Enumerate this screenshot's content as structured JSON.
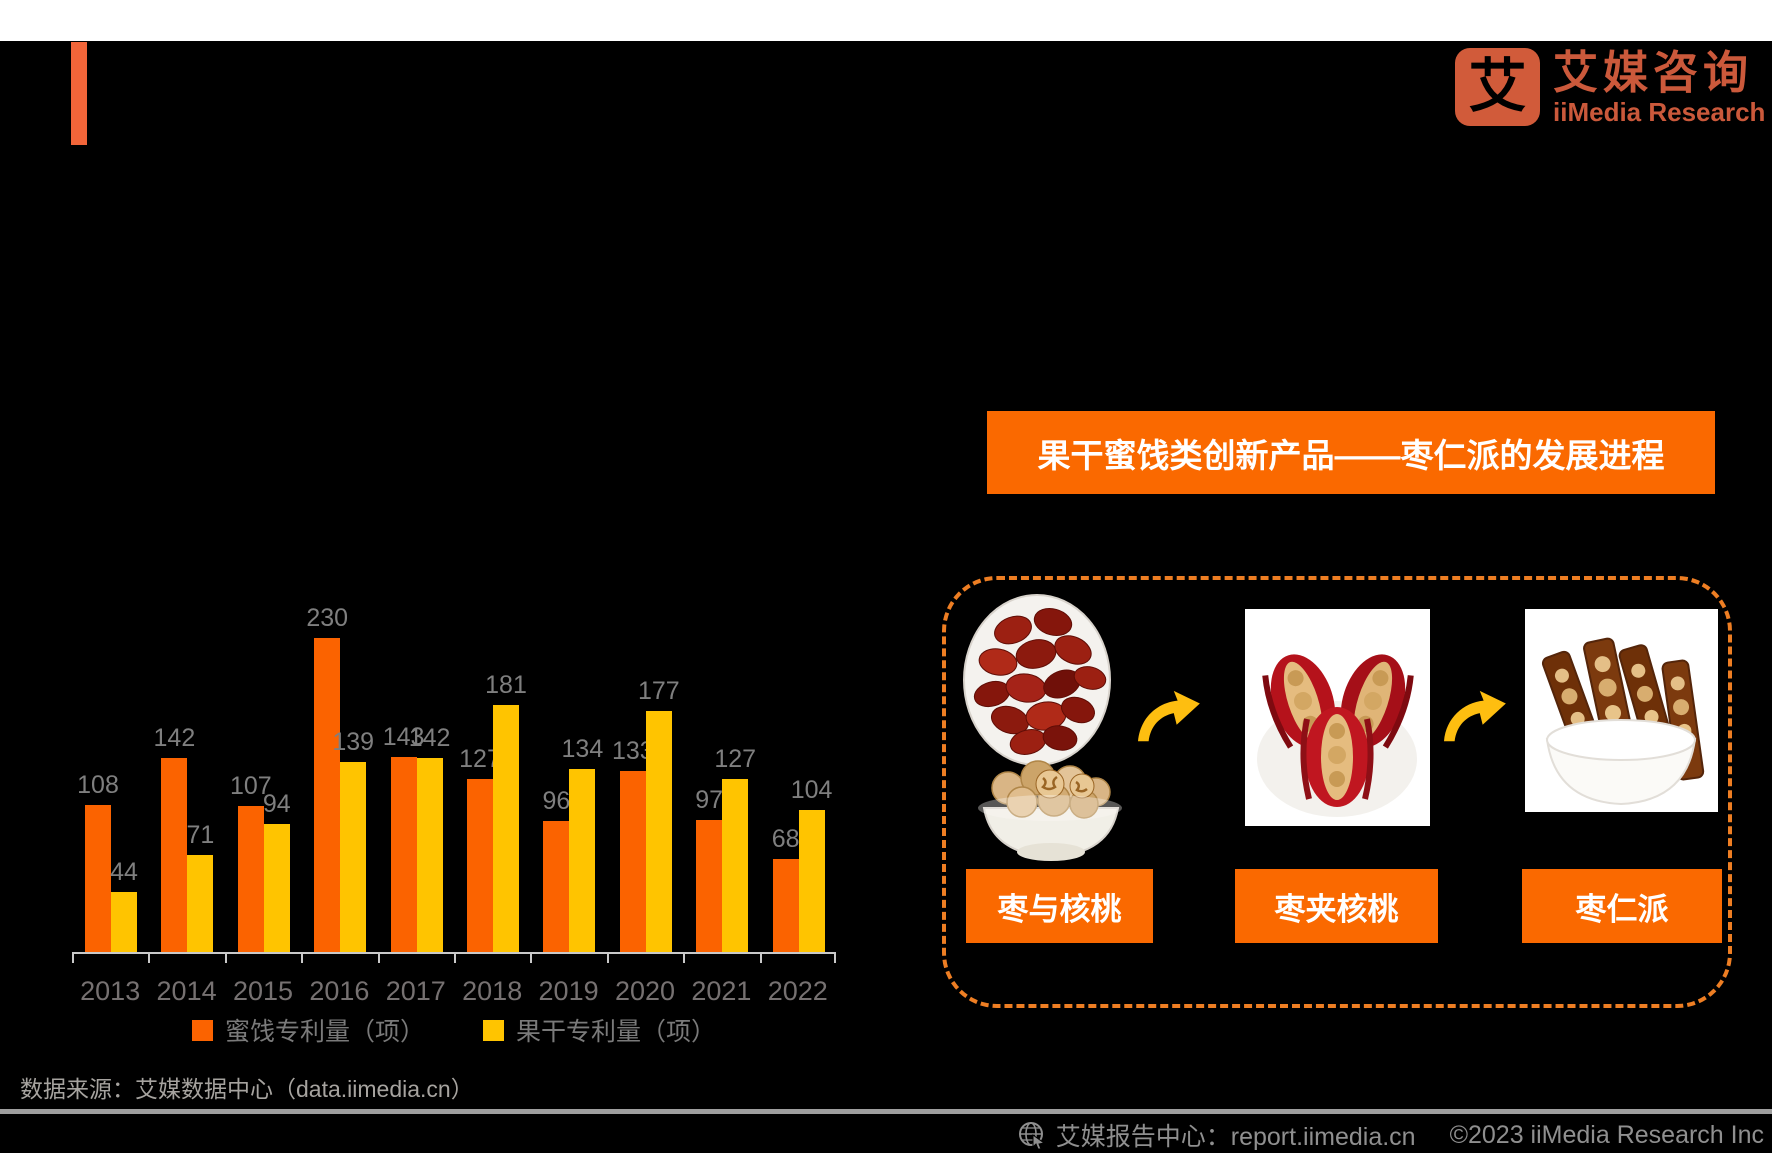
{
  "meta": {
    "background_color": "#000000",
    "top_strip_color": "#ffffff",
    "accent_bar_color": "#f26539"
  },
  "logo": {
    "glyph": "艾",
    "box_color": "#d15b3a",
    "brand_cn": "艾媒咨询",
    "brand_en": "iiMedia Research",
    "text_color": "#cb593b"
  },
  "chart_data": {
    "type": "bar",
    "categories": [
      "2013",
      "2014",
      "2015",
      "2016",
      "2017",
      "2018",
      "2019",
      "2020",
      "2021",
      "2022"
    ],
    "series": [
      {
        "name": "蜜饯专利量（项）",
        "color": "#fb6300",
        "values": [
          108,
          142,
          107,
          230,
          143,
          127,
          96,
          133,
          97,
          68
        ]
      },
      {
        "name": "果干专利量（项）",
        "color": "#ffc400",
        "values": [
          44,
          71,
          94,
          139,
          142,
          181,
          134,
          177,
          127,
          104
        ]
      }
    ],
    "title": "",
    "xlabel": "",
    "ylabel": "",
    "ylim": [
      0,
      250
    ],
    "grid": false,
    "legend_position": "bottom",
    "value_labels": true,
    "axis_color": "#c9c9c9",
    "label_color": "#7f7f7f"
  },
  "source_note": "数据来源：艾媒数据中心（data.iimedia.cn）",
  "right_panel": {
    "title": "果干蜜饯类创新产品——枣仁派的发展进程",
    "title_bg": "#fa6900",
    "border_color": "#ee7e23",
    "arrow_color": "#febe10",
    "label_bg": "#fa6900",
    "steps": [
      {
        "label": "枣与核桃",
        "image": "red-dates-plate-and-walnuts-bowl"
      },
      {
        "label": "枣夹核桃",
        "image": "walnut-stuffed-dates"
      },
      {
        "label": "枣仁派",
        "image": "date-walnut-pie-slices-bowl"
      }
    ]
  },
  "footer": {
    "icon": "globe-cursor-icon",
    "report_center": "艾媒报告中心：report.iimedia.cn",
    "copyright": "©2023  iiMedia Research Inc"
  }
}
